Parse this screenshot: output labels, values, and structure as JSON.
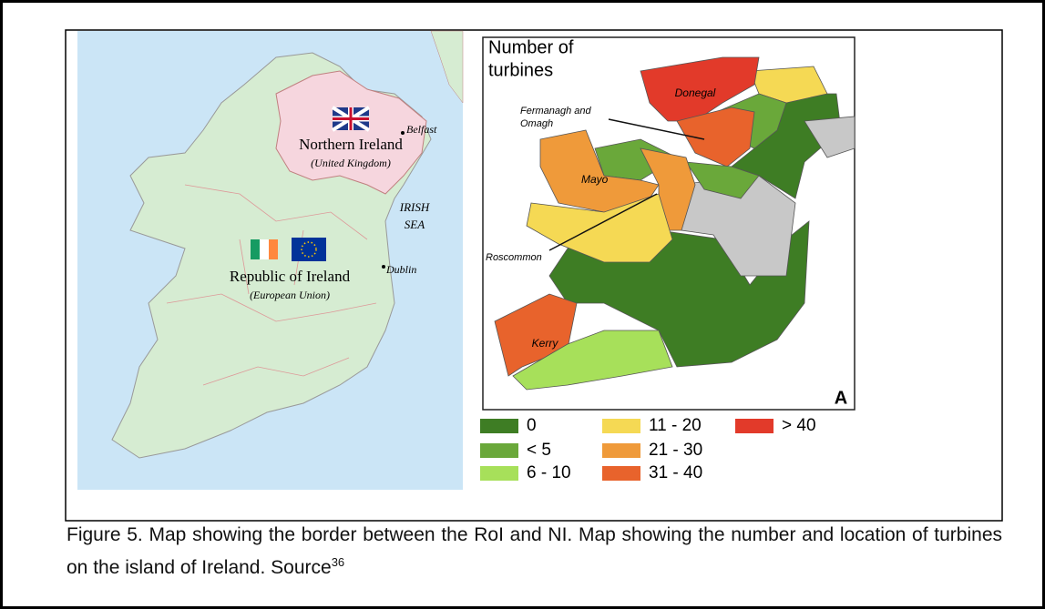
{
  "left_map": {
    "ni_label": "Northern Ireland",
    "ni_sub": "(United Kingdom)",
    "belfast": "Belfast",
    "sea": [
      "IRISH",
      "SEA"
    ],
    "roi_label": "Republic of Ireland",
    "roi_sub": "(European Union)",
    "dublin": "Dublin"
  },
  "right_map": {
    "title": [
      "Number of",
      "turbines"
    ],
    "regions": {
      "donegal": "Donegal",
      "fermanagh": [
        "Fermanagh and",
        "Omagh"
      ],
      "mayo": "Mayo",
      "roscommon": "Roscommon",
      "kerry": "Kerry"
    },
    "panel": "A",
    "legend": [
      {
        "label": "0",
        "color": "#3e7d24"
      },
      {
        "label": "< 5",
        "color": "#6aa83a"
      },
      {
        "label": "6 - 10",
        "color": "#a7e05a"
      },
      {
        "label": "11 - 20",
        "color": "#f5d954"
      },
      {
        "label": "21 - 30",
        "color": "#ef9a3a"
      },
      {
        "label": "31 - 40",
        "color": "#e8632c"
      },
      {
        "label": "> 40",
        "color": "#e23a2a"
      }
    ]
  },
  "caption": {
    "text": "Figure 5.  Map showing the border between the RoI and NI. Map showing the number and location of turbines on the island of Ireland.  Source",
    "superscript": "36"
  }
}
